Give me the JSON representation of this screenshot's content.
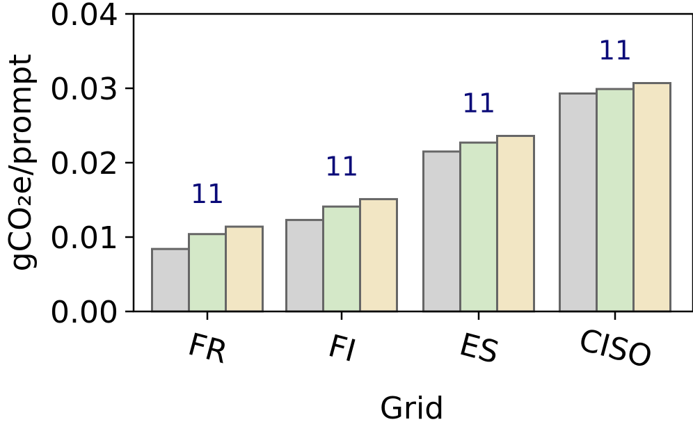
{
  "chart_data": {
    "type": "bar",
    "title": "",
    "xlabel": "Grid",
    "ylabel": "gCO₂e/prompt",
    "categories": [
      "FR",
      "FI",
      "ES",
      "CISO"
    ],
    "series": [
      {
        "values": [
          0.0084,
          0.0123,
          0.0215,
          0.0293
        ],
        "color": "#d3d3d3"
      },
      {
        "values": [
          0.0104,
          0.0141,
          0.0227,
          0.0299
        ],
        "color": "#d4e8c8"
      },
      {
        "values": [
          0.0114,
          0.0151,
          0.0236,
          0.0307
        ],
        "color": "#f2e6c4"
      }
    ],
    "bar_labels": [
      "11",
      "11",
      "11",
      "11"
    ],
    "bar_label_color": "#0a0a78",
    "bar_edge_color": "#666666",
    "ylim": [
      0,
      0.04
    ],
    "yticks": [
      "0.00",
      "0.01",
      "0.02",
      "0.03",
      "0.04"
    ],
    "ytick_values": [
      0,
      0.01,
      0.02,
      0.03,
      0.04
    ],
    "grid": false,
    "legend": "none"
  }
}
